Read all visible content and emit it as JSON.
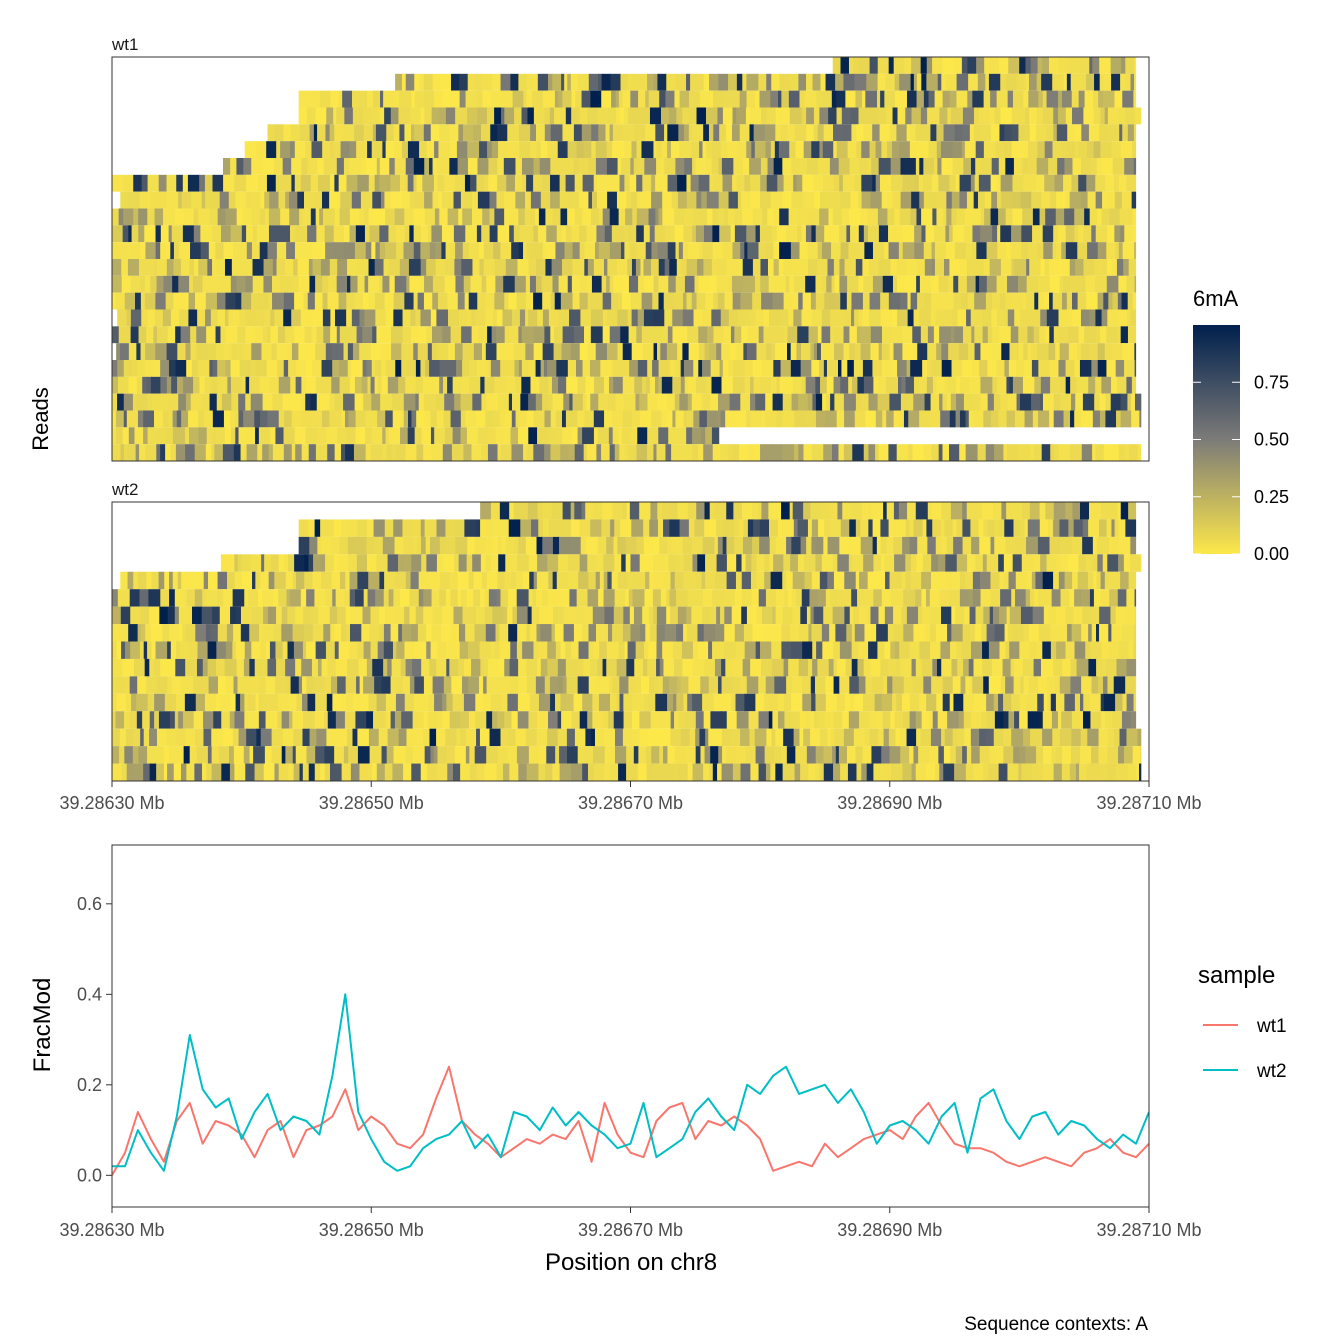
{
  "chart_data": [
    {
      "type": "heatmap",
      "panels": [
        {
          "name": "wt1",
          "read_count": 24
        },
        {
          "name": "wt2",
          "read_count": 16
        }
      ],
      "xlim": [
        39.2863,
        39.2871
      ],
      "x_ticks": [
        39.2863,
        39.2865,
        39.2867,
        39.2869,
        39.2871
      ],
      "x_tick_labels": [
        "39.28630 Mb",
        "39.28650 Mb",
        "39.28670 Mb",
        "39.28690 Mb",
        "39.28710 Mb"
      ],
      "ylabel": "Reads",
      "legend": {
        "title": "6mA",
        "position": "right",
        "ticks": [
          0.75,
          0.5,
          0.25,
          0.0
        ],
        "tick_labels": [
          "0.75",
          "0.50",
          "0.25",
          "0.00"
        ],
        "range": [
          0,
          1
        ],
        "colors": {
          "low": "#FDE84A",
          "mid": "#7C7B78",
          "high": "#00204D"
        }
      }
    },
    {
      "type": "line",
      "xlabel": "Position on chr8",
      "ylabel": "FracMod",
      "xlim": [
        39.2863,
        39.2871
      ],
      "ylim": [
        -0.07,
        0.73
      ],
      "x_ticks": [
        39.2863,
        39.2865,
        39.2867,
        39.2869,
        39.2871
      ],
      "x_tick_labels": [
        "39.28630 Mb",
        "39.28650 Mb",
        "39.28670 Mb",
        "39.28690 Mb",
        "39.28710 Mb"
      ],
      "y_ticks": [
        0.0,
        0.2,
        0.4,
        0.6
      ],
      "y_tick_labels": [
        "0.0",
        "0.2",
        "0.4",
        "0.6"
      ],
      "legend": {
        "title": "sample",
        "position": "right"
      },
      "series": [
        {
          "name": "wt1",
          "color": "#F8766D",
          "x": [
            39.2863,
            39.28631,
            39.28632,
            39.28633,
            39.28634,
            39.28635,
            39.28636,
            39.28637,
            39.28638,
            39.28639,
            39.2864,
            39.28641,
            39.28642,
            39.28643,
            39.28644,
            39.28645,
            39.28646,
            39.28647,
            39.28648,
            39.28649,
            39.2865,
            39.28651,
            39.28652,
            39.28653,
            39.28654,
            39.28655,
            39.28656,
            39.28657,
            39.28658,
            39.28659,
            39.2866,
            39.28661,
            39.28662,
            39.28663,
            39.28664,
            39.28665,
            39.28666,
            39.28667,
            39.28668,
            39.28669,
            39.2867,
            39.28671,
            39.28672,
            39.28673,
            39.28674,
            39.28675,
            39.28676,
            39.28677,
            39.28678,
            39.28679,
            39.2868,
            39.28681,
            39.28682,
            39.28683,
            39.28684,
            39.28685,
            39.28686,
            39.28687,
            39.28688,
            39.28689,
            39.2869,
            39.28691,
            39.28692,
            39.28693,
            39.28694,
            39.28695,
            39.28696,
            39.28697,
            39.28698,
            39.28699,
            39.287,
            39.28701,
            39.28702,
            39.28703,
            39.28704,
            39.28705,
            39.28706,
            39.28707,
            39.28708,
            39.28709,
            39.2871
          ],
          "y": [
            0.0,
            0.05,
            0.14,
            0.08,
            0.03,
            0.12,
            0.16,
            0.07,
            0.12,
            0.11,
            0.09,
            0.04,
            0.1,
            0.12,
            0.04,
            0.1,
            0.11,
            0.13,
            0.19,
            0.1,
            0.13,
            0.11,
            0.07,
            0.06,
            0.09,
            0.17,
            0.24,
            0.12,
            0.09,
            0.07,
            0.04,
            0.06,
            0.08,
            0.07,
            0.09,
            0.08,
            0.12,
            0.03,
            0.16,
            0.09,
            0.05,
            0.04,
            0.12,
            0.15,
            0.16,
            0.08,
            0.12,
            0.11,
            0.13,
            0.11,
            0.08,
            0.01,
            0.02,
            0.03,
            0.02,
            0.07,
            0.04,
            0.06,
            0.08,
            0.09,
            0.1,
            0.08,
            0.13,
            0.16,
            0.11,
            0.07,
            0.06,
            0.06,
            0.05,
            0.03,
            0.02,
            0.03,
            0.04,
            0.03,
            0.02,
            0.05,
            0.06,
            0.08,
            0.05,
            0.04,
            0.07
          ]
        },
        {
          "name": "wt2",
          "color": "#00BFC4",
          "x": [
            39.2863,
            39.28631,
            39.28632,
            39.28633,
            39.28634,
            39.28635,
            39.28636,
            39.28637,
            39.28638,
            39.28639,
            39.2864,
            39.28641,
            39.28642,
            39.28643,
            39.28644,
            39.28645,
            39.28646,
            39.28647,
            39.28648,
            39.28649,
            39.2865,
            39.28651,
            39.28652,
            39.28653,
            39.28654,
            39.28655,
            39.28656,
            39.28657,
            39.28658,
            39.28659,
            39.2866,
            39.28661,
            39.28662,
            39.28663,
            39.28664,
            39.28665,
            39.28666,
            39.28667,
            39.28668,
            39.28669,
            39.2867,
            39.28671,
            39.28672,
            39.28673,
            39.28674,
            39.28675,
            39.28676,
            39.28677,
            39.28678,
            39.28679,
            39.2868,
            39.28681,
            39.28682,
            39.28683,
            39.28684,
            39.28685,
            39.28686,
            39.28687,
            39.28688,
            39.28689,
            39.2869,
            39.28691,
            39.28692,
            39.28693,
            39.28694,
            39.28695,
            39.28696,
            39.28697,
            39.28698,
            39.28699,
            39.287,
            39.28701,
            39.28702,
            39.28703,
            39.28704,
            39.28705,
            39.28706,
            39.28707,
            39.28708,
            39.28709,
            39.2871
          ],
          "y": [
            0.02,
            0.02,
            0.1,
            0.05,
            0.01,
            0.13,
            0.31,
            0.19,
            0.15,
            0.17,
            0.08,
            0.14,
            0.18,
            0.1,
            0.13,
            0.12,
            0.09,
            0.22,
            0.4,
            0.14,
            0.08,
            0.03,
            0.01,
            0.02,
            0.06,
            0.08,
            0.09,
            0.12,
            0.06,
            0.09,
            0.04,
            0.14,
            0.13,
            0.1,
            0.15,
            0.11,
            0.14,
            0.11,
            0.09,
            0.06,
            0.07,
            0.16,
            0.04,
            0.06,
            0.08,
            0.14,
            0.17,
            0.13,
            0.1,
            0.2,
            0.18,
            0.22,
            0.24,
            0.18,
            0.19,
            0.2,
            0.16,
            0.19,
            0.14,
            0.07,
            0.11,
            0.12,
            0.1,
            0.07,
            0.13,
            0.16,
            0.05,
            0.17,
            0.19,
            0.12,
            0.08,
            0.13,
            0.14,
            0.09,
            0.12,
            0.11,
            0.08,
            0.06,
            0.09,
            0.07,
            0.14
          ]
        }
      ]
    }
  ],
  "caption": "Sequence contexts: A"
}
